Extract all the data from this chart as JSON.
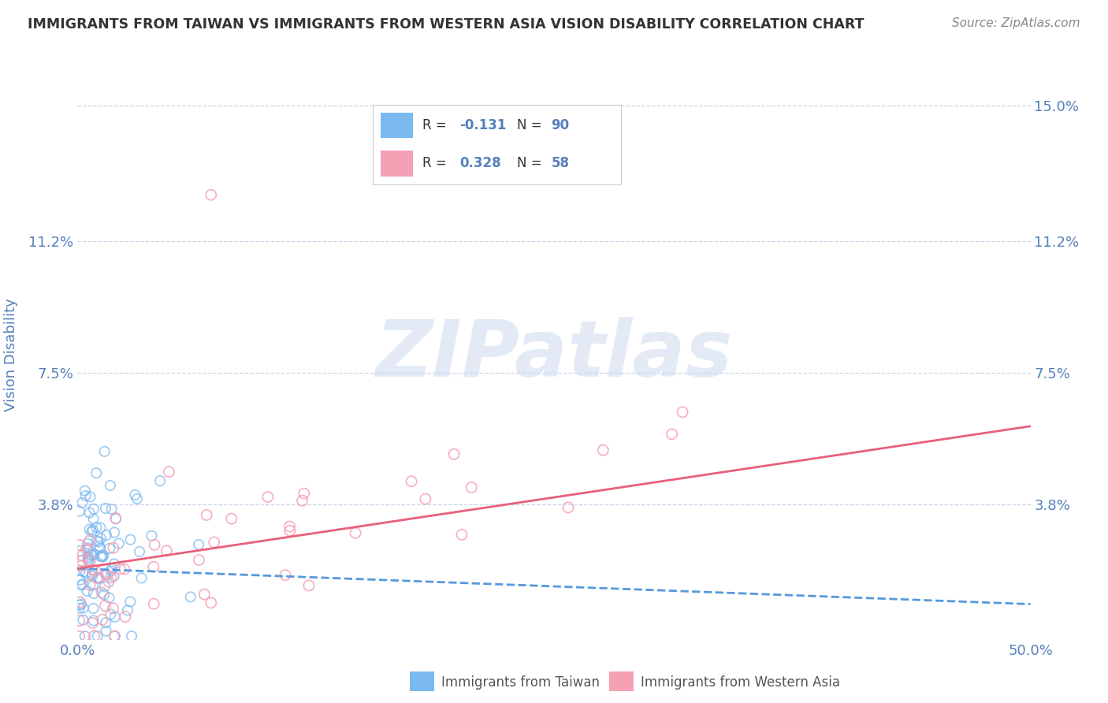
{
  "title": "IMMIGRANTS FROM TAIWAN VS IMMIGRANTS FROM WESTERN ASIA VISION DISABILITY CORRELATION CHART",
  "source": "Source: ZipAtlas.com",
  "xlabel_taiwan": "Immigrants from Taiwan",
  "xlabel_western_asia": "Immigrants from Western Asia",
  "ylabel": "Vision Disability",
  "watermark": "ZIPatlas",
  "xlim": [
    0.0,
    0.5
  ],
  "ylim": [
    0.0,
    0.16
  ],
  "yticks": [
    0.038,
    0.075,
    0.112,
    0.15
  ],
  "ytick_labels": [
    "3.8%",
    "7.5%",
    "11.2%",
    "15.0%"
  ],
  "xticks": [
    0.0,
    0.5
  ],
  "xtick_labels": [
    "0.0%",
    "50.0%"
  ],
  "taiwan_color": "#7ab8f0",
  "western_asia_color": "#f5a0b5",
  "taiwan_R": -0.131,
  "taiwan_N": 90,
  "western_asia_R": 0.328,
  "western_asia_N": 58,
  "taiwan_trend_color": "#5599dd",
  "western_asia_trend_color": "#e8607a",
  "background_color": "#ffffff",
  "grid_color": "#c8d4e8",
  "axis_label_color": "#5580bb",
  "title_color": "#333333",
  "taiwan_trend_start_y": 0.02,
  "taiwan_trend_end_y": 0.01,
  "western_asia_trend_start_y": 0.02,
  "western_asia_trend_end_y": 0.06
}
